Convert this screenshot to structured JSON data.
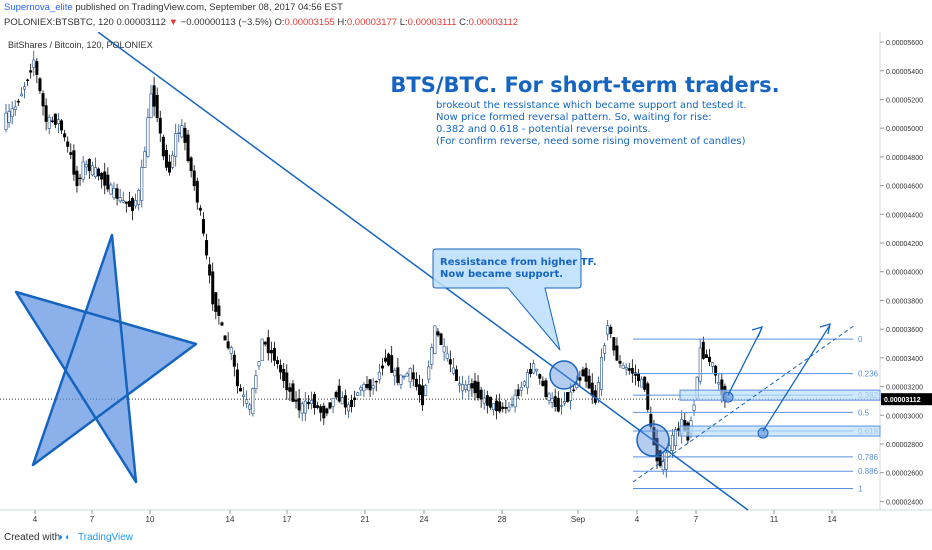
{
  "header": {
    "author": "Supernova_elite",
    "published": "published on TradingView.com, September 08, 2017 04:56 EST",
    "symbol": "POLONIEX:BTSBTC, 120",
    "last": "0.00003112",
    "arrow": "▼",
    "change": "−0.00000113 (−3.5%)",
    "o_label": "O:",
    "o": "0.00003155",
    "h_label": "H:",
    "h": "0.00003177",
    "l_label": "L:",
    "l": "0.00003111",
    "c_label": "C:",
    "c": "0.00003112"
  },
  "footer": {
    "created": "Created with",
    "brand": "TradingView"
  },
  "colors": {
    "up": "#1f4e8c",
    "down": "#000000",
    "accent": "#1565c0",
    "note_fill": "#bbdefb",
    "line": "#1565c0"
  },
  "chart_data": {
    "type": "candlestick",
    "title": "BitShares / Bitcoin, 120, POLONIEX",
    "ylim": [
      2.34e-05,
      5.67e-05
    ],
    "y_ticks": [
      "0.00005600",
      "0.00005400",
      "0.00005200",
      "0.00005000",
      "0.00004800",
      "0.00004600",
      "0.00004400",
      "0.00004200",
      "0.00004000",
      "0.00003800",
      "0.00003600",
      "0.00003400",
      "0.00003200",
      "0.00003000",
      "0.00002800",
      "0.00002600",
      "0.00002400"
    ],
    "x_ticks": [
      "4",
      "7",
      "10",
      "14",
      "17",
      "21",
      "24",
      "28",
      "Sep",
      "4",
      "7",
      "11",
      "14"
    ],
    "last_price": "0.00003112",
    "price_path": [
      [
        0,
        5.05e-05
      ],
      [
        2,
        5.15e-05
      ],
      [
        4,
        5.35e-05
      ],
      [
        5,
        5.48e-05
      ],
      [
        6,
        5.25e-05
      ],
      [
        7,
        5.05e-05
      ],
      [
        9,
        5.05e-05
      ],
      [
        11,
        4.8e-05
      ],
      [
        12,
        4.6e-05
      ],
      [
        13,
        4.75e-05
      ],
      [
        15,
        4.7e-05
      ],
      [
        17,
        4.6e-05
      ],
      [
        19,
        4.5e-05
      ],
      [
        21,
        4.45e-05
      ],
      [
        22,
        4.55e-05
      ],
      [
        23,
        4.85e-05
      ],
      [
        24,
        5.25e-05
      ],
      [
        25,
        5.1e-05
      ],
      [
        26,
        4.8e-05
      ],
      [
        27,
        4.7e-05
      ],
      [
        28,
        4.95e-05
      ],
      [
        29,
        5e-05
      ],
      [
        30,
        4.8e-05
      ],
      [
        31,
        4.6e-05
      ],
      [
        32,
        4.4e-05
      ],
      [
        33,
        4.1e-05
      ],
      [
        34,
        3.8e-05
      ],
      [
        35,
        3.7e-05
      ],
      [
        36,
        3.5e-05
      ],
      [
        37,
        3.45e-05
      ],
      [
        38,
        3.2e-05
      ],
      [
        40,
        3.05e-05
      ],
      [
        42,
        3.52e-05
      ],
      [
        44,
        3.4e-05
      ],
      [
        46,
        3.2e-05
      ],
      [
        48,
        3.05e-05
      ],
      [
        50,
        3.1e-05
      ],
      [
        52,
        3e-05
      ],
      [
        54,
        3.15e-05
      ],
      [
        56,
        3.05e-05
      ],
      [
        58,
        3.2e-05
      ],
      [
        60,
        3.2e-05
      ],
      [
        62,
        3.4e-05
      ],
      [
        64,
        3.25e-05
      ],
      [
        66,
        3.3e-05
      ],
      [
        68,
        3.1e-05
      ],
      [
        70,
        3.6e-05
      ],
      [
        72,
        3.4e-05
      ],
      [
        74,
        3.2e-05
      ],
      [
        76,
        3.2e-05
      ],
      [
        78,
        3.1e-05
      ],
      [
        80,
        3.05e-05
      ],
      [
        82,
        3.05e-05
      ],
      [
        84,
        3.2e-05
      ],
      [
        86,
        3.35e-05
      ],
      [
        88,
        3.15e-05
      ],
      [
        90,
        3.05e-05
      ],
      [
        92,
        3.15e-05
      ],
      [
        94,
        3.3e-05
      ],
      [
        95,
        3.2e-05
      ],
      [
        96,
        3.1e-05
      ],
      [
        98,
        3.65e-05
      ],
      [
        99,
        3.45e-05
      ],
      [
        100,
        3.35e-05
      ],
      [
        102,
        3.3e-05
      ],
      [
        104,
        3.2e-05
      ],
      [
        105,
        2.9e-05
      ],
      [
        106,
        2.7e-05
      ],
      [
        107,
        2.65e-05
      ],
      [
        108,
        2.8e-05
      ],
      [
        110,
        2.95e-05
      ],
      [
        111,
        2.85e-05
      ],
      [
        112,
        3.1e-05
      ],
      [
        113,
        3.45e-05
      ],
      [
        114,
        3.4e-05
      ],
      [
        115,
        3.35e-05
      ],
      [
        116,
        3.2e-05
      ],
      [
        117,
        3.12e-05
      ]
    ],
    "fib_levels": [
      {
        "label": "0",
        "value": 3.53e-05
      },
      {
        "label": "0.236",
        "value": 3.29e-05
      },
      {
        "label": "0.382",
        "value": 3.14e-05
      },
      {
        "label": "0.5",
        "value": 3.02e-05
      },
      {
        "label": "0.618",
        "value": 2.89e-05
      },
      {
        "label": "0.786",
        "value": 2.71e-05
      },
      {
        "label": "0.886",
        "value": 2.61e-05
      },
      {
        "label": "1",
        "value": 2.49e-05
      }
    ],
    "annotations": {
      "title": "BTS/BTC. For short-term traders.",
      "notes": [
        "brokeout the ressistance which became support and tested it.",
        "Now price formed reversal pattern. So, waiting for rise:",
        "0.382 and 0.618 - potential reverse points.",
        "(For confirm reverse, need some rising movement of candles)"
      ],
      "callout": [
        "Ressistance from higher TF.",
        "Now became support."
      ]
    }
  }
}
